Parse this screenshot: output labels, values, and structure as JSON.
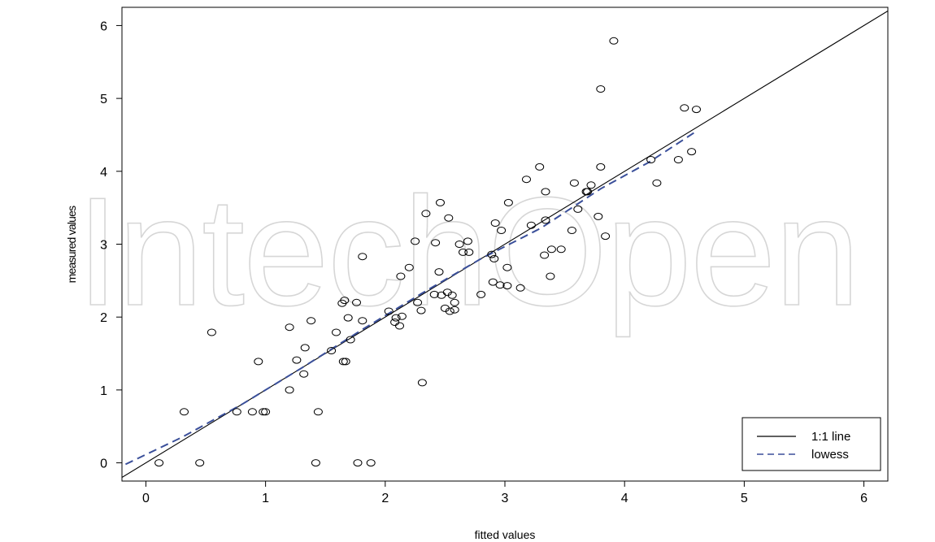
{
  "watermark": "IntechOpen",
  "chart_data": {
    "type": "scatter",
    "xlabel": "fitted values",
    "ylabel": "measured values",
    "xlim": [
      -0.2,
      6.2
    ],
    "ylim": [
      -0.25,
      6.25
    ],
    "x_ticks": [
      0,
      1,
      2,
      3,
      4,
      5,
      6
    ],
    "y_ticks": [
      0,
      1,
      2,
      3,
      4,
      5,
      6
    ],
    "grid": false,
    "legend": {
      "position": "bottom-right",
      "entries": [
        {
          "label": "1:1 line",
          "style": "solid",
          "color": "#000000"
        },
        {
          "label": "lowess",
          "style": "dashed",
          "color": "#3a4f9a"
        }
      ]
    },
    "series": [
      {
        "kind": "points",
        "marker": "open-circle",
        "color": "#000000",
        "points": [
          [
            0.11,
            0.0
          ],
          [
            0.32,
            0.7
          ],
          [
            0.45,
            0.0
          ],
          [
            0.55,
            1.79
          ],
          [
            0.76,
            0.7
          ],
          [
            0.89,
            0.7
          ],
          [
            0.94,
            1.39
          ],
          [
            0.98,
            0.7
          ],
          [
            1.0,
            0.7
          ],
          [
            1.2,
            1.86
          ],
          [
            1.2,
            1.0
          ],
          [
            1.26,
            1.41
          ],
          [
            1.32,
            1.22
          ],
          [
            1.33,
            1.58
          ],
          [
            1.38,
            1.95
          ],
          [
            1.42,
            0.0
          ],
          [
            1.44,
            0.7
          ],
          [
            1.55,
            1.54
          ],
          [
            1.59,
            1.79
          ],
          [
            1.64,
            2.19
          ],
          [
            1.65,
            1.39
          ],
          [
            1.66,
            2.23
          ],
          [
            1.67,
            1.39
          ],
          [
            1.69,
            1.99
          ],
          [
            1.71,
            1.69
          ],
          [
            1.76,
            2.2
          ],
          [
            1.77,
            0.0
          ],
          [
            1.81,
            1.95
          ],
          [
            1.81,
            2.83
          ],
          [
            1.88,
            0.0
          ],
          [
            2.03,
            2.08
          ],
          [
            2.08,
            1.93
          ],
          [
            2.09,
            1.99
          ],
          [
            2.12,
            1.88
          ],
          [
            2.13,
            2.56
          ],
          [
            2.14,
            2.01
          ],
          [
            2.2,
            2.68
          ],
          [
            2.25,
            3.04
          ],
          [
            2.27,
            2.2
          ],
          [
            2.3,
            2.09
          ],
          [
            2.31,
            1.1
          ],
          [
            2.34,
            3.42
          ],
          [
            2.41,
            2.31
          ],
          [
            2.42,
            3.02
          ],
          [
            2.45,
            2.62
          ],
          [
            2.46,
            3.57
          ],
          [
            2.47,
            2.3
          ],
          [
            2.5,
            2.12
          ],
          [
            2.52,
            2.34
          ],
          [
            2.53,
            3.36
          ],
          [
            2.54,
            2.08
          ],
          [
            2.56,
            2.3
          ],
          [
            2.58,
            2.1
          ],
          [
            2.58,
            2.2
          ],
          [
            2.62,
            3.0
          ],
          [
            2.65,
            2.89
          ],
          [
            2.69,
            3.04
          ],
          [
            2.7,
            2.89
          ],
          [
            2.8,
            2.31
          ],
          [
            2.89,
            2.86
          ],
          [
            2.9,
            2.48
          ],
          [
            2.91,
            2.8
          ],
          [
            2.92,
            3.29
          ],
          [
            2.96,
            2.44
          ],
          [
            2.97,
            3.19
          ],
          [
            3.02,
            2.68
          ],
          [
            3.02,
            2.43
          ],
          [
            3.03,
            3.57
          ],
          [
            3.13,
            2.4
          ],
          [
            3.18,
            3.89
          ],
          [
            3.22,
            3.26
          ],
          [
            3.29,
            4.06
          ],
          [
            3.33,
            2.85
          ],
          [
            3.34,
            3.72
          ],
          [
            3.34,
            3.33
          ],
          [
            3.38,
            2.56
          ],
          [
            3.39,
            2.93
          ],
          [
            3.47,
            2.93
          ],
          [
            3.56,
            3.19
          ],
          [
            3.58,
            3.84
          ],
          [
            3.61,
            3.48
          ],
          [
            3.68,
            3.72
          ],
          [
            3.69,
            3.72
          ],
          [
            3.72,
            3.81
          ],
          [
            3.78,
            3.38
          ],
          [
            3.8,
            4.06
          ],
          [
            3.8,
            5.13
          ],
          [
            3.84,
            3.11
          ],
          [
            3.91,
            5.79
          ],
          [
            4.22,
            4.16
          ],
          [
            4.27,
            3.84
          ],
          [
            4.45,
            4.16
          ],
          [
            4.5,
            4.87
          ],
          [
            4.56,
            4.27
          ],
          [
            4.6,
            4.85
          ]
        ]
      },
      {
        "kind": "line",
        "name": "1:1 line",
        "style": "solid",
        "color": "#000000",
        "points": [
          [
            -0.2,
            -0.2
          ],
          [
            6.2,
            6.2
          ]
        ]
      },
      {
        "kind": "line",
        "name": "lowess",
        "style": "dashed",
        "color": "#3a4f9a",
        "points": [
          [
            -0.17,
            -0.02
          ],
          [
            0.3,
            0.35
          ],
          [
            0.8,
            0.8
          ],
          [
            1.3,
            1.3
          ],
          [
            1.8,
            1.82
          ],
          [
            2.3,
            2.32
          ],
          [
            2.8,
            2.8
          ],
          [
            3.3,
            3.22
          ],
          [
            3.8,
            3.76
          ],
          [
            4.2,
            4.12
          ],
          [
            4.6,
            4.55
          ]
        ]
      }
    ]
  }
}
